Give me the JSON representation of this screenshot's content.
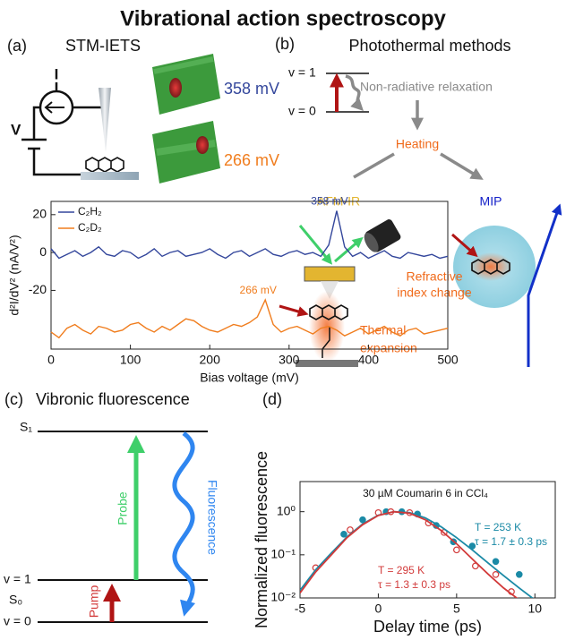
{
  "title": "Vibrational action spectroscopy",
  "panels": {
    "a": {
      "label": "(a)",
      "title": "STM-IETS",
      "current": "I",
      "voltage": "V",
      "image_labels": [
        "358 mV",
        "266 mV"
      ]
    },
    "b": {
      "label": "(b)",
      "title": "Photothermal methods",
      "upper_level": "v = 1",
      "lower_level": "v = 0",
      "relaxation": "Non-radiative relaxation",
      "heating": "Heating",
      "left_method": "AFM-IR",
      "right_method": "MIP",
      "left_effect": [
        "Thermal",
        "expansion"
      ],
      "right_effect": [
        "Refractive",
        "index change"
      ]
    },
    "c": {
      "label": "(c)",
      "title": "Vibronic fluorescence",
      "excited_state": "S₁",
      "ground_state": "S₀",
      "upper_level": "v = 1",
      "lower_level": "v = 0",
      "probe": "Probe",
      "pump": "Pump",
      "emission": "Fluorescence"
    },
    "d": {
      "label": "(d)"
    }
  },
  "chart_data": [
    {
      "type": "line",
      "xlabel": "Bias voltage (mV)",
      "ylabel": "d²I/dV² (nA/V²)",
      "x": [
        0,
        10,
        20,
        30,
        40,
        50,
        60,
        70,
        80,
        90,
        100,
        110,
        120,
        130,
        140,
        150,
        160,
        170,
        180,
        190,
        200,
        210,
        220,
        230,
        240,
        250,
        260,
        270,
        280,
        290,
        300,
        310,
        320,
        330,
        340,
        350,
        360,
        370,
        380,
        390,
        400,
        410,
        420,
        430,
        440,
        450,
        460,
        470,
        480,
        490,
        500
      ],
      "series": [
        {
          "name": "C₂H₂",
          "color": "#34479c",
          "values": [
            2,
            -3,
            -1,
            1,
            -2,
            0,
            3,
            -1,
            -2,
            1,
            0,
            -3,
            -1,
            2,
            -2,
            0,
            1,
            -2,
            -1,
            0,
            2,
            -1,
            -3,
            0,
            1,
            -2,
            0,
            2,
            -1,
            -2,
            0,
            1,
            -1,
            0,
            -2,
            4,
            22,
            3,
            -2,
            0,
            -3,
            -1,
            1,
            -2,
            -3,
            0,
            -1,
            -2,
            -1,
            -3,
            -2
          ]
        },
        {
          "name": "C₂D₂",
          "color": "#f07d1e",
          "values": [
            -42,
            -45,
            -40,
            -38,
            -41,
            -43,
            -39,
            -40,
            -42,
            -41,
            -38,
            -37,
            -40,
            -42,
            -39,
            -41,
            -38,
            -35,
            -36,
            -39,
            -41,
            -42,
            -40,
            -38,
            -39,
            -37,
            -34,
            -25,
            -38,
            -42,
            -40,
            -39,
            -41,
            -43,
            -40,
            -39,
            -41,
            -44,
            -42,
            -40,
            -43,
            -41,
            -39,
            -42,
            -44,
            -41,
            -40,
            -43,
            -42,
            -41,
            -40
          ]
        }
      ],
      "annotations": [
        "358 mV",
        "266 mV"
      ],
      "xlim": [
        0,
        500
      ],
      "xticks": [
        0,
        100,
        200,
        300,
        400,
        500
      ],
      "ylim": [
        -51,
        27
      ],
      "yticks": [
        -20,
        0,
        20
      ],
      "legend": "upper left",
      "grid": false
    },
    {
      "type": "scatter",
      "xlabel": "Delay time (ps)",
      "ylabel": "Normalized fluorescence",
      "log_y": true,
      "series": [
        {
          "color": "#1b8aa6",
          "marker": "filled",
          "x": [
            -2.2,
            -1,
            0.5,
            1.5,
            2.5,
            3.7,
            4.8,
            6,
            7.5,
            9
          ],
          "values": [
            0.3,
            0.65,
            1.0,
            1.0,
            0.88,
            0.48,
            0.2,
            0.16,
            0.07,
            0.035
          ]
        },
        {
          "color": "#d23a3a",
          "marker": "open",
          "x": [
            -4,
            -1.8,
            0,
            0.8,
            2,
            3.2,
            4.2,
            5,
            6.2,
            7.5,
            8.5
          ],
          "values": [
            0.05,
            0.38,
            0.95,
            1.0,
            0.95,
            0.55,
            0.33,
            0.13,
            0.055,
            0.035,
            0.014
          ]
        },
        {
          "color": "#1b8aa6",
          "marker": "line",
          "x": [
            -5,
            -4,
            -3,
            -2,
            -1,
            0,
            1,
            2,
            3,
            4,
            5,
            6,
            7,
            8,
            9,
            10
          ],
          "values": [
            0.015,
            0.045,
            0.11,
            0.26,
            0.52,
            0.83,
            1.0,
            0.95,
            0.72,
            0.45,
            0.25,
            0.13,
            0.065,
            0.033,
            0.017,
            0.009
          ]
        },
        {
          "color": "#d23a3a",
          "marker": "line",
          "x": [
            -5,
            -4,
            -3,
            -2,
            -1,
            0,
            1,
            2,
            3,
            4,
            5,
            6,
            7,
            8,
            9
          ],
          "values": [
            0.013,
            0.04,
            0.1,
            0.25,
            0.5,
            0.82,
            1.0,
            0.92,
            0.65,
            0.37,
            0.18,
            0.08,
            0.036,
            0.017,
            0.009
          ]
        }
      ],
      "notes": [
        "30 µM Coumarin 6 in CCl₄",
        "T = 253 K",
        "τ = 1.7 ± 0.3 ps",
        "T = 295 K",
        "τ = 1.3 ± 0.3 ps"
      ],
      "xlim": [
        -5,
        11.3
      ],
      "xticks": [
        -5,
        0,
        5,
        10
      ],
      "ylim": [
        0.01,
        5
      ],
      "yticks": [
        {
          "value": 0.01,
          "label": "10⁻²"
        },
        {
          "value": 0.1,
          "label": "10⁻¹"
        },
        {
          "value": 1,
          "label": "10⁰"
        }
      ],
      "grid": false
    }
  ]
}
